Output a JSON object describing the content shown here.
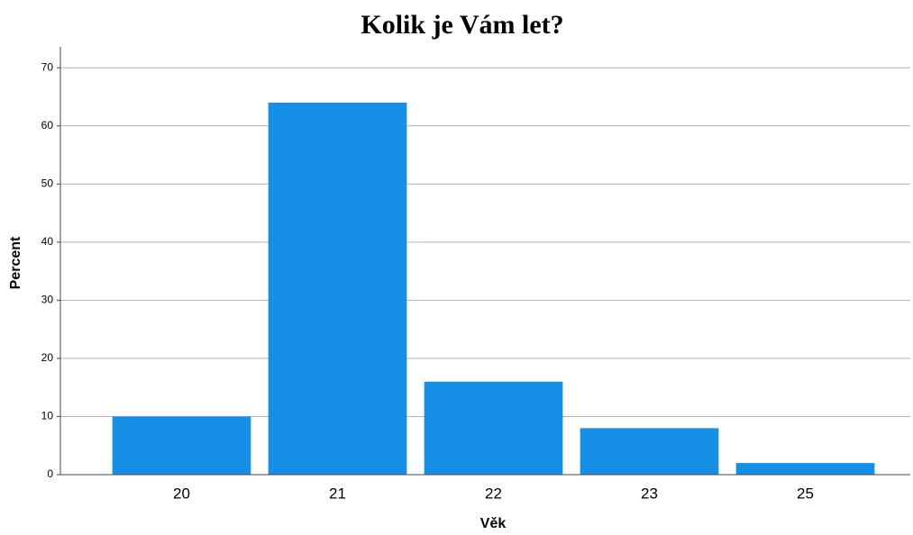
{
  "chart_data": {
    "type": "bar",
    "title": "Kolik je Vám let?",
    "x_label": "Věk",
    "y_label": "Percent",
    "categories": [
      "20",
      "21",
      "22",
      "23",
      "25"
    ],
    "values": [
      10,
      64,
      16,
      8,
      2
    ],
    "color": "#1590e6",
    "ylim": [
      0,
      73.6
    ],
    "yticks": [
      0,
      10,
      20,
      30,
      40,
      50,
      60,
      70
    ],
    "grid": true
  }
}
